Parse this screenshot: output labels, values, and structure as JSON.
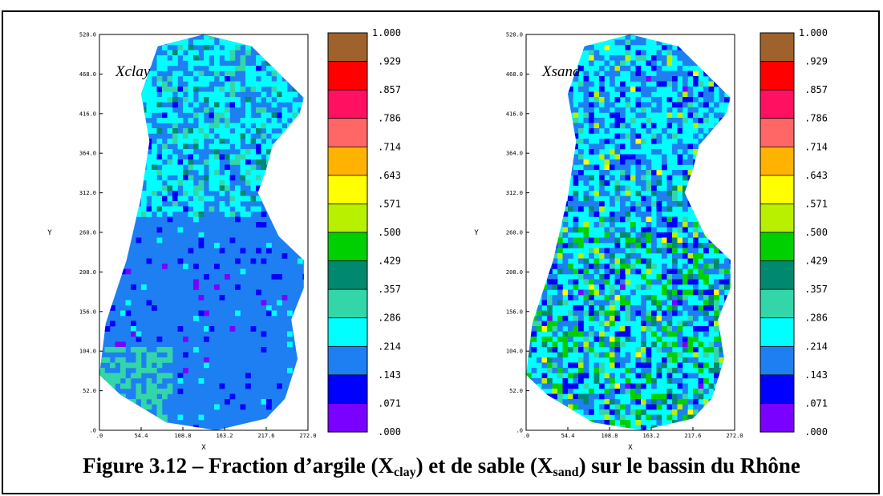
{
  "caption": {
    "prefix": "Figure 3.12 – Fraction d’argile (X",
    "sub1": "clay",
    "middle": ") et de sable (X",
    "sub2": "sand",
    "suffix": ") sur le bassin du Rhône"
  },
  "chart_data": [
    {
      "type": "heatmap",
      "title": "Xclay",
      "xlabel": "X",
      "ylabel": "Y",
      "x_ticks": [
        ".0",
        "54.4",
        "108.8",
        "163.2",
        "217.6",
        "272.0"
      ],
      "y_ticks": [
        ".0",
        "52.0",
        "104.0",
        "156.0",
        "208.0",
        "260.0",
        "312.0",
        "364.0",
        "416.0",
        "468.0",
        "520.0"
      ],
      "xlim": [
        0,
        272
      ],
      "ylim": [
        0,
        520
      ],
      "dominant_class": ".143–.214",
      "colorbar": {
        "labels": [
          "1.000",
          ".929",
          ".857",
          ".786",
          ".714",
          ".643",
          ".571",
          ".500",
          ".429",
          ".357",
          ".286",
          ".214",
          ".143",
          ".071",
          ".000"
        ],
        "colors": [
          "#a0622d",
          "#ff0000",
          "#ff1060",
          "#ff6666",
          "#ffb300",
          "#ffff00",
          "#b8f000",
          "#00d000",
          "#00896e",
          "#33d6a8",
          "#00ffff",
          "#1e7ff2",
          "#0000ff",
          "#7a00ff"
        ]
      }
    },
    {
      "type": "heatmap",
      "title": "Xsand",
      "xlabel": "X",
      "ylabel": "Y",
      "x_ticks": [
        ".0",
        "54.4",
        "108.8",
        "163.2",
        "217.6",
        "272.0"
      ],
      "y_ticks": [
        ".0",
        "52.0",
        "104.0",
        "156.0",
        "208.0",
        "260.0",
        "312.0",
        "364.0",
        "416.0",
        "468.0",
        "520.0"
      ],
      "xlim": [
        0,
        272
      ],
      "ylim": [
        0,
        520
      ],
      "dominant_class": ".214–.286",
      "colorbar": {
        "labels": [
          "1.000",
          ".929",
          ".857",
          ".786",
          ".714",
          ".643",
          ".571",
          ".500",
          ".429",
          ".357",
          ".286",
          ".214",
          ".143",
          ".071",
          ".000"
        ],
        "colors": [
          "#a0622d",
          "#ff0000",
          "#ff1060",
          "#ff6666",
          "#ffb300",
          "#ffff00",
          "#b8f000",
          "#00d000",
          "#00896e",
          "#33d6a8",
          "#00ffff",
          "#1e7ff2",
          "#0000ff",
          "#7a00ff"
        ]
      }
    }
  ]
}
